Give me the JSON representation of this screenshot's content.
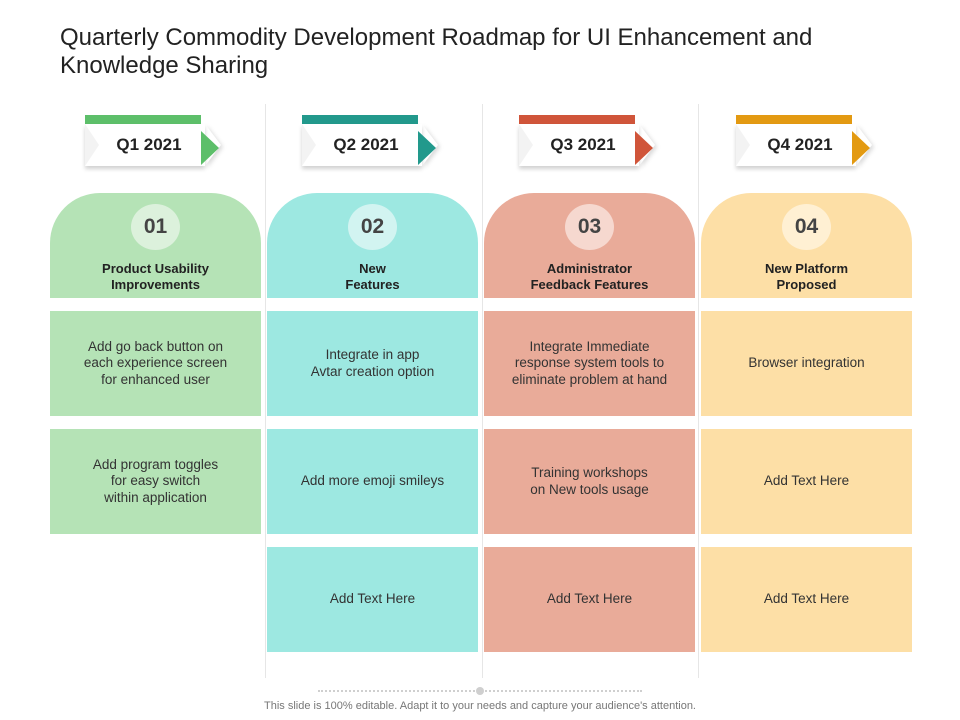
{
  "title": "Quarterly Commodity Development Roadmap for UI Enhancement and Knowledge Sharing",
  "colors": {
    "green": "#b5e3b6",
    "teal": "#9de8e1",
    "salmon": "#e9ab99",
    "yellow": "#fddfa6"
  },
  "columns": [
    {
      "quarter": "Q1 2021",
      "number": "01",
      "heading": "Product Usability\nImprovements",
      "accent": "#5dbf6a",
      "fill": "#b5e3b6",
      "circle": "#dcf1dc",
      "items": [
        "Add go back button on\neach experience screen\nfor enhanced user",
        "Add program toggles\nfor  easy switch\nwithin application"
      ]
    },
    {
      "quarter": "Q2 2021",
      "number": "02",
      "heading": "New\nFeatures",
      "accent": "#22998c",
      "fill": "#9de8e1",
      "circle": "#d2f4f1",
      "items": [
        "Integrate in app\nAvtar creation option",
        "Add more emoji smileys",
        "Add Text Here"
      ]
    },
    {
      "quarter": "Q3 2021",
      "number": "03",
      "heading": "Administrator\nFeedback Features",
      "accent": "#d0553a",
      "fill": "#e9ab99",
      "circle": "#f6d8cf",
      "items": [
        "Integrate Immediate\nresponse system tools to\neliminate problem at hand",
        "Training workshops\non New  tools usage",
        "Add Text Here"
      ]
    },
    {
      "quarter": "Q4 2021",
      "number": "04",
      "heading": "New Platform\nProposed",
      "accent": "#e39a12",
      "fill": "#fddfa6",
      "circle": "#fff0d3",
      "items": [
        "Browser integration",
        "Add Text Here",
        "Add Text Here"
      ]
    }
  ],
  "footer": "This slide is 100% editable. Adapt it to your needs and capture your audience's attention."
}
